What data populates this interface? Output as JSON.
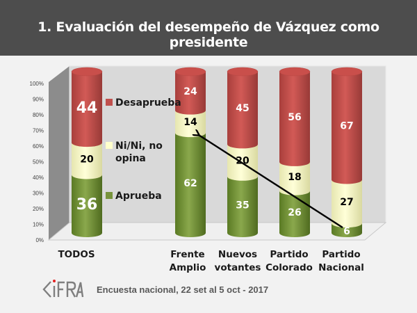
{
  "header": {
    "title": "1.   Evaluación del desempeño de Vázquez como presidente"
  },
  "chart_data": {
    "type": "bar",
    "stacked": true,
    "style": "3d-cylinder",
    "title": "1. Evaluación del desempeño de Vázquez como presidente",
    "categories": [
      [
        "TODOS"
      ],
      [
        "Frente",
        "Amplio"
      ],
      [
        "Nuevos",
        "votantes"
      ],
      [
        "Partido",
        "Colorado"
      ],
      [
        "Partido",
        "Nacional"
      ]
    ],
    "series": [
      {
        "name": "Aprueba",
        "color": "#77933c",
        "label_color": "#ffffff",
        "values": [
          36,
          62,
          35,
          26,
          6
        ]
      },
      {
        "name": "Ni/Ni, no opina",
        "color": "#ffffcc",
        "label_color": "#000000",
        "values": [
          20,
          14,
          20,
          18,
          27
        ]
      },
      {
        "name": "Desaprueba",
        "color": "#c0504d",
        "label_color": "#ffffff",
        "values": [
          44,
          24,
          45,
          56,
          67
        ]
      }
    ],
    "legend": {
      "placement": "left-inside",
      "items": [
        {
          "label_lines": [
            "Desaprueba"
          ],
          "color": "#c0504d"
        },
        {
          "label_lines": [
            "Ni/Ni, no",
            "opina"
          ],
          "color": "#ffffcc"
        },
        {
          "label_lines": [
            "Aprueba"
          ],
          "color": "#77933c"
        }
      ]
    },
    "yaxis": {
      "ylim": [
        0,
        100
      ],
      "ticks": [
        "0%",
        "10%",
        "20%",
        "30%",
        "40%",
        "50%",
        "60%",
        "70%",
        "80%",
        "90%",
        "100%"
      ]
    },
    "xlabel": "",
    "ylabel": "",
    "grid": false,
    "annotation": {
      "type": "arrow",
      "from_category": "Partido Nacional",
      "from_series": "Aprueba",
      "to_category": "Frente Amplio",
      "to_series": "Aprueba"
    }
  },
  "footer": {
    "logo_text": "CIFRA",
    "source": "Encuesta nacional,  22 set al 5 oct - 2017"
  }
}
